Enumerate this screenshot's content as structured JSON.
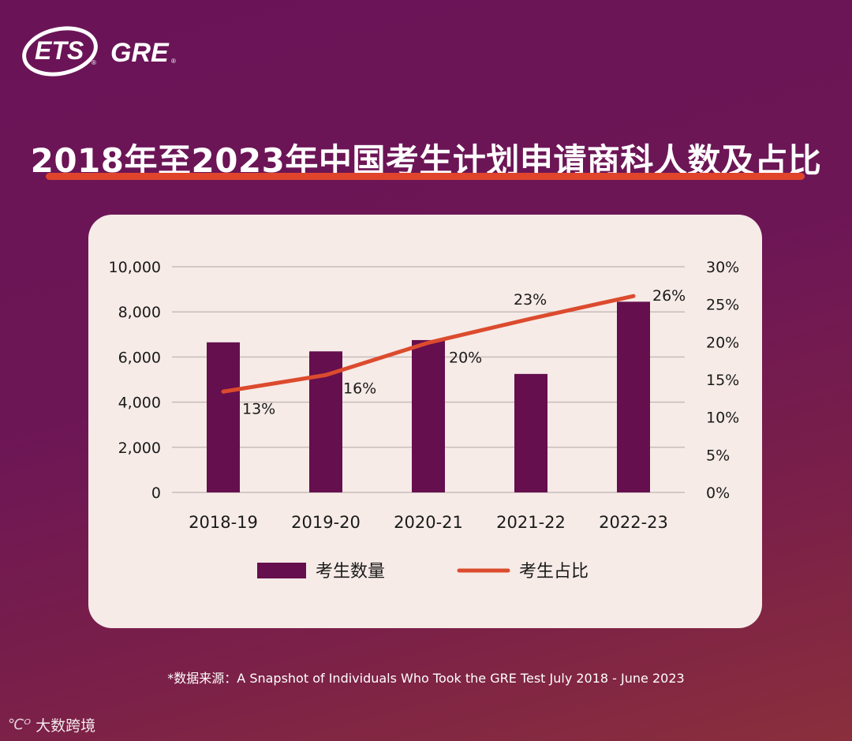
{
  "logo": {
    "brand1": "ETS",
    "brand2": "GRE",
    "reg": "®"
  },
  "title": "2018年至2023年中国考生计划申请商科人数及占比",
  "source": "*数据来源：A Snapshot of Individuals Who Took the GRE Test July 2018 - June 2023",
  "watermark": {
    "text": "大数跨境",
    "icon": "ribbon-logo-icon"
  },
  "colors": {
    "bar": "#650f4e",
    "line": "#dc4b2e",
    "accent": "#e0452c",
    "card": "#f6ebe7"
  },
  "chart_data": {
    "type": "bar",
    "categories": [
      "2018-19",
      "2019-20",
      "2020-21",
      "2021-22",
      "2022-23"
    ],
    "series": [
      {
        "name": "考生数量",
        "type": "bar",
        "axis": "left",
        "values": [
          6650,
          6250,
          6750,
          5250,
          8450
        ]
      },
      {
        "name": "考生占比",
        "type": "line",
        "axis": "right",
        "values": [
          13.4,
          15.6,
          19.9,
          23.1,
          26.1
        ],
        "labels": [
          "13%",
          "16%",
          "20%",
          "23%",
          "26%"
        ]
      }
    ],
    "y_left": {
      "range": [
        0,
        10000
      ],
      "ticks": [
        "0",
        "2,000",
        "4,000",
        "6,000",
        "8,000",
        "10,000"
      ]
    },
    "y_right": {
      "range": [
        0,
        30
      ],
      "ticks": [
        "0%",
        "5%",
        "10%",
        "15%",
        "20%",
        "25%",
        "30%"
      ]
    },
    "grid": true,
    "legend": "bottom"
  }
}
